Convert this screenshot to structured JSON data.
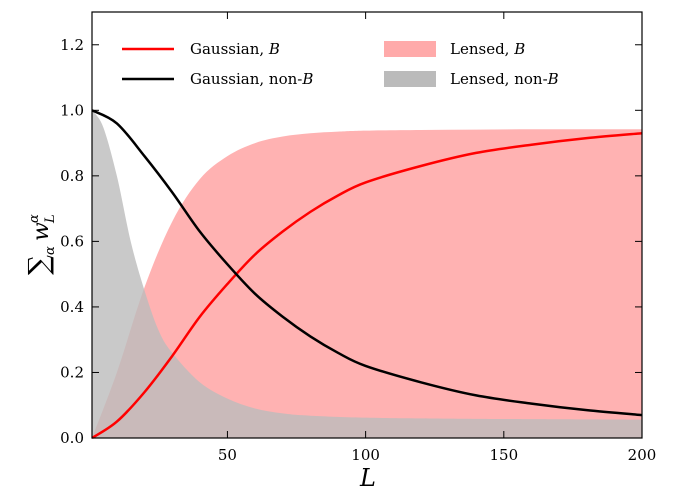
{
  "chart_data": {
    "type": "area",
    "xlabel": "L",
    "ylabel": "∑α wLα",
    "xlim": [
      1,
      200
    ],
    "ylim": [
      0,
      1.3
    ],
    "x_ticks": [
      50,
      100,
      150,
      200
    ],
    "y_ticks": [
      0.0,
      0.2,
      0.4,
      0.6,
      0.8,
      1.0,
      1.2
    ],
    "x_tick_labels": [
      "50",
      "100",
      "150",
      "200"
    ],
    "y_tick_labels": [
      "0.0",
      "0.2",
      "0.4",
      "0.6",
      "0.8",
      "1.0",
      "1.2"
    ],
    "legend_position": "top",
    "legend": [
      {
        "label": "Gaussian, B",
        "kind": "line",
        "color": "#ff0000"
      },
      {
        "label": "Gaussian, non-B",
        "kind": "line",
        "color": "#000000"
      },
      {
        "label": "Lensed, B",
        "kind": "fill",
        "color": "#ffaaaa"
      },
      {
        "label": "Lensed, non-B",
        "kind": "fill",
        "color": "#bbbbbb"
      }
    ],
    "series": [
      {
        "name": "Gaussian, B",
        "style": "line",
        "color": "#ff0000",
        "x": [
          1,
          10,
          20,
          30,
          40,
          50,
          60,
          70,
          80,
          90,
          100,
          120,
          140,
          160,
          180,
          200
        ],
        "y": [
          0.0,
          0.05,
          0.14,
          0.25,
          0.37,
          0.47,
          0.56,
          0.63,
          0.69,
          0.74,
          0.78,
          0.83,
          0.87,
          0.895,
          0.915,
          0.93
        ]
      },
      {
        "name": "Gaussian, non-B",
        "style": "line",
        "color": "#000000",
        "x": [
          1,
          10,
          20,
          30,
          40,
          50,
          60,
          70,
          80,
          90,
          100,
          120,
          140,
          160,
          180,
          200
        ],
        "y": [
          1.0,
          0.96,
          0.86,
          0.75,
          0.63,
          0.53,
          0.44,
          0.37,
          0.31,
          0.26,
          0.22,
          0.17,
          0.13,
          0.105,
          0.085,
          0.07
        ]
      },
      {
        "name": "Lensed, B",
        "style": "fill",
        "color": "#ffaaaa",
        "x": [
          1,
          10,
          20,
          30,
          40,
          50,
          60,
          70,
          80,
          90,
          100,
          120,
          140,
          160,
          180,
          200
        ],
        "y": [
          0.0,
          0.2,
          0.46,
          0.66,
          0.79,
          0.86,
          0.9,
          0.92,
          0.93,
          0.935,
          0.938,
          0.94,
          0.941,
          0.942,
          0.942,
          0.942
        ]
      },
      {
        "name": "Lensed, non-B",
        "style": "fill",
        "color": "#bbbbbb",
        "x": [
          1,
          5,
          10,
          15,
          20,
          25,
          30,
          40,
          50,
          60,
          70,
          80,
          100,
          120,
          150,
          200
        ],
        "y": [
          1.0,
          0.95,
          0.8,
          0.6,
          0.45,
          0.33,
          0.26,
          0.17,
          0.12,
          0.09,
          0.075,
          0.068,
          0.062,
          0.06,
          0.058,
          0.056
        ]
      }
    ]
  }
}
